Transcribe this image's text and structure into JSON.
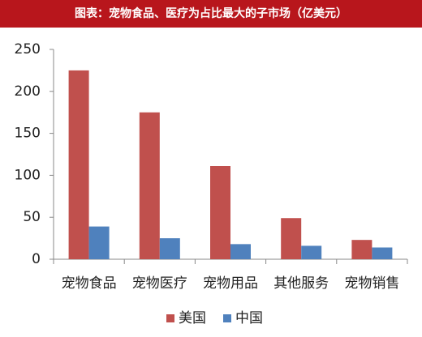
{
  "chart_data": {
    "type": "bar",
    "title": "图表：宠物食品、医疗为占比最大的子市场（亿美元）",
    "categories": [
      "宠物食品",
      "宠物医疗",
      "宠物用品",
      "其他服务",
      "宠物销售"
    ],
    "series": [
      {
        "name": "美国",
        "color": "#c0504d",
        "values": [
          225,
          175,
          111,
          49,
          23
        ]
      },
      {
        "name": "中国",
        "color": "#4f81bd",
        "values": [
          39,
          25,
          18,
          16,
          14
        ]
      }
    ],
    "ylim": [
      0,
      250
    ],
    "yticks": [
      0,
      50,
      100,
      150,
      200,
      250
    ],
    "grid": false,
    "legend": "bottom"
  }
}
